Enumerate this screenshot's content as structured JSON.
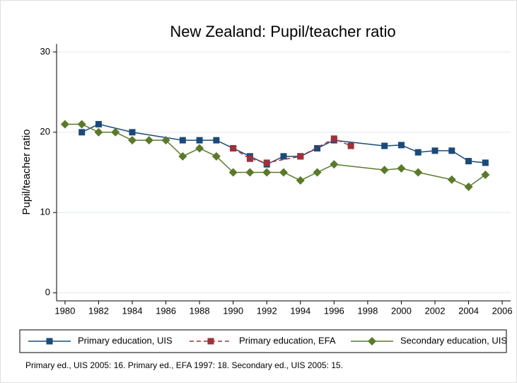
{
  "chart_data": {
    "type": "line",
    "title": "New Zealand: Pupil/teacher ratio",
    "y_label": "Pupil/teacher ratio",
    "note": "Primary ed., UIS 2005: 16. Primary ed., EFA 1997: 18. Secondary ed., UIS 2005: 15.",
    "xlim": [
      1979.5,
      2006.5
    ],
    "xticks": [
      1980,
      1982,
      1984,
      1986,
      1988,
      1990,
      1992,
      1994,
      1996,
      1998,
      2000,
      2002,
      2004,
      2006
    ],
    "ylim": [
      -1,
      31
    ],
    "yticks": [
      0,
      10,
      20,
      30
    ],
    "grid": true,
    "legend": "bottom",
    "series": [
      {
        "name": "Primary education, UIS",
        "color": "#1a4a7a",
        "marker": "square",
        "dash": false,
        "x": [
          1981,
          1982,
          1984,
          1987,
          1988,
          1989,
          1990,
          1991,
          1992,
          1993,
          1994,
          1995,
          1996,
          1999,
          2000,
          2001,
          2002,
          2003,
          2004,
          2005
        ],
        "values": [
          20,
          21,
          20,
          19,
          19,
          19,
          18,
          17,
          16,
          17,
          17,
          18,
          19,
          18.3,
          18.4,
          17.5,
          17.7,
          17.7,
          16.4,
          16.2
        ]
      },
      {
        "name": "Primary education, EFA",
        "color": "#a0303a",
        "marker": "square",
        "dash": true,
        "x": [
          1990,
          1991,
          1992,
          1994,
          1996,
          1997
        ],
        "values": [
          18,
          16.7,
          16.2,
          17,
          19.2,
          18.3
        ]
      },
      {
        "name": "Secondary education, UIS",
        "color": "#5a7a2a",
        "marker": "diamond",
        "dash": false,
        "x": [
          1980,
          1981,
          1982,
          1983,
          1984,
          1985,
          1986,
          1987,
          1988,
          1989,
          1990,
          1991,
          1992,
          1993,
          1994,
          1995,
          1996,
          1999,
          2000,
          2001,
          2003,
          2004,
          2005
        ],
        "values": [
          21,
          21,
          20,
          20,
          19,
          19,
          19,
          17,
          18,
          17,
          15,
          15,
          15,
          15,
          14,
          15,
          16,
          15.3,
          15.5,
          15,
          14.1,
          13.2,
          14.7
        ]
      }
    ]
  }
}
